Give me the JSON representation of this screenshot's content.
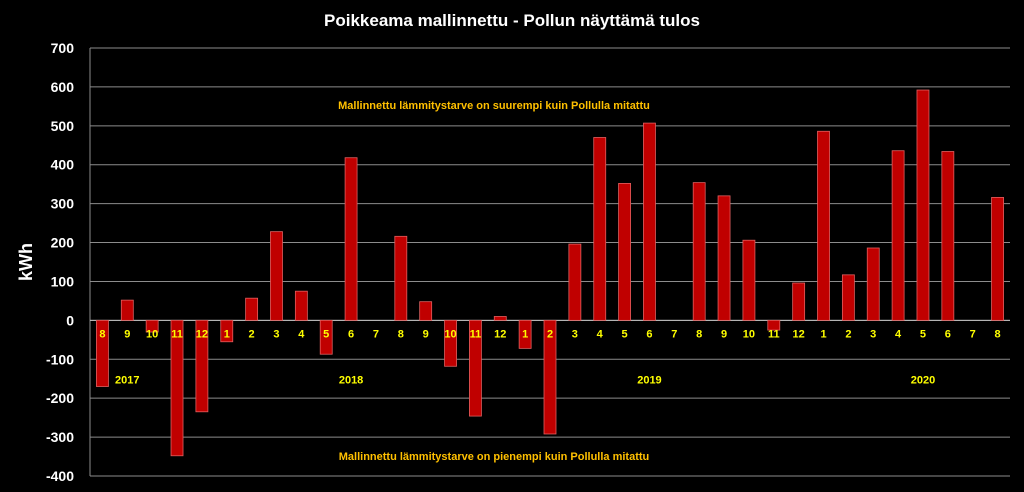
{
  "chart_data": {
    "type": "bar",
    "title": "Poikkeama mallinnettu - Pollun näyttämä tulos",
    "ylabel": "kWh",
    "xlabel": "",
    "ylim": [
      -400,
      700
    ],
    "yticks": [
      700,
      600,
      500,
      400,
      300,
      200,
      100,
      0,
      -100,
      -200,
      -300,
      -400
    ],
    "grid": true,
    "legend": "none",
    "categories": [
      "8",
      "9",
      "10",
      "11",
      "12",
      "1",
      "2",
      "3",
      "4",
      "5",
      "6",
      "7",
      "8",
      "9",
      "10",
      "11",
      "12",
      "1",
      "2",
      "3",
      "4",
      "5",
      "6",
      "7",
      "8",
      "9",
      "10",
      "11",
      "12",
      "1",
      "2",
      "3",
      "4",
      "5",
      "6",
      "7",
      "8"
    ],
    "values": [
      -170,
      52,
      -30,
      -348,
      -235,
      -55,
      57,
      228,
      75,
      -87,
      418,
      0,
      216,
      48,
      -118,
      -246,
      10,
      -72,
      -292,
      196,
      470,
      352,
      507,
      0,
      354,
      320,
      206,
      -25,
      96,
      486,
      117,
      186,
      436,
      592,
      434,
      0,
      316
    ],
    "years": [
      {
        "label": "2017",
        "category_index": 1
      },
      {
        "label": "2018",
        "category_index": 10
      },
      {
        "label": "2019",
        "category_index": 22
      },
      {
        "label": "2020",
        "category_index": 33
      }
    ],
    "annotations": {
      "upper": "Mallinnettu lämmitystarve on suurempi kuin Pollulla mitattu",
      "lower": "Mallinnettu lämmitystarve on pienempi kuin Pollulla mitattu"
    },
    "colors": {
      "background": "#000000",
      "bar_fill": "#c00000",
      "bar_stroke": "#e06060",
      "grid": "#8c8c8c",
      "text": "#ffffff",
      "month_label": "#ffff00",
      "annotation": "#ffc000"
    }
  }
}
